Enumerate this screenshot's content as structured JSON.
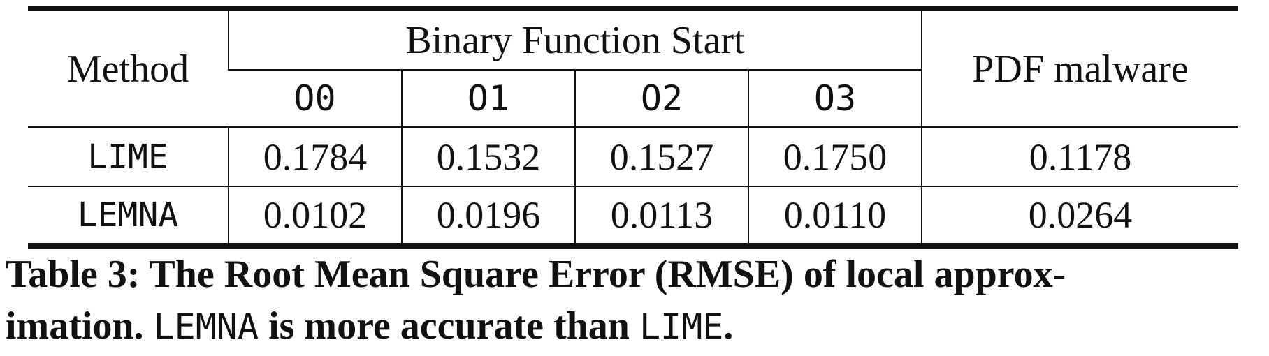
{
  "table": {
    "header": {
      "method": "Method",
      "group": "Binary Function Start",
      "pdf": "PDF malware",
      "sub_columns": [
        "O0",
        "O1",
        "O2",
        "O3"
      ]
    },
    "rows": [
      {
        "method": "LIME",
        "values": [
          "0.1784",
          "0.1532",
          "0.1527",
          "0.1750"
        ],
        "pdf": "0.1178"
      },
      {
        "method": "LEMNA",
        "values": [
          "0.0102",
          "0.0196",
          "0.0113",
          "0.0110"
        ],
        "pdf": "0.0264"
      }
    ]
  },
  "caption": {
    "line1": "Table 3: The Root Mean Square Error (RMSE) of local approx-",
    "line2_prefix": "imation.",
    "line2_term1": "LEMNA",
    "line2_middle": "is more accurate than",
    "line2_term2": "LIME",
    "line2_end": "."
  }
}
